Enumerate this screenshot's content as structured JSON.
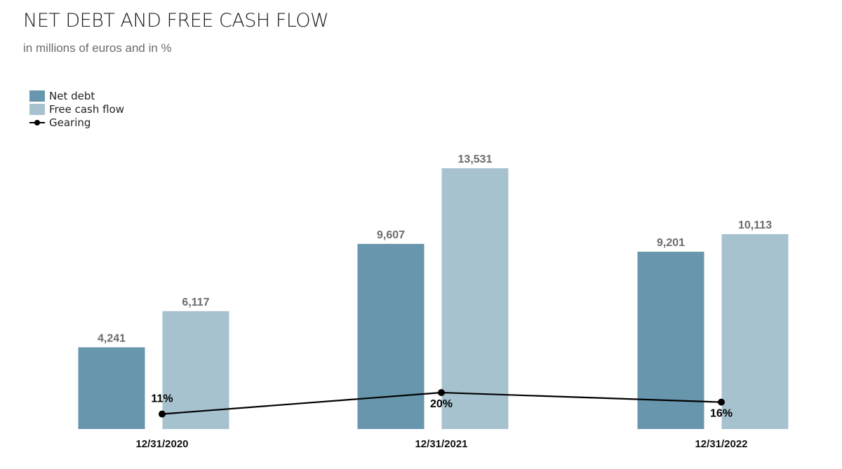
{
  "header": {
    "title": "NET DEBT AND FREE CASH FLOW",
    "subtitle": "in millions of euros and in %"
  },
  "legend": {
    "items": [
      {
        "label": "Net debt",
        "kind": "bar",
        "color": "#6896ad"
      },
      {
        "label": "Free cash flow",
        "kind": "bar",
        "color": "#a7c2cf"
      },
      {
        "label": "Gearing",
        "kind": "line",
        "color": "#000000"
      }
    ]
  },
  "chart_data": {
    "type": "bar",
    "categories": [
      "12/31/2020",
      "12/31/2021",
      "12/31/2022"
    ],
    "series": [
      {
        "name": "Net debt",
        "values": [
          4241,
          9607,
          9201
        ],
        "labels": [
          "4,241",
          "9,607",
          "9,201"
        ],
        "color": "#6896ad"
      },
      {
        "name": "Free cash flow",
        "values": [
          6117,
          13531,
          10113
        ],
        "labels": [
          "6,117",
          "13,531",
          "10,113"
        ],
        "color": "#a7c2cf"
      }
    ],
    "line_series": {
      "name": "Gearing",
      "values": [
        11,
        20,
        16
      ],
      "labels": [
        "11%",
        "20%",
        "16%"
      ],
      "unit": "%",
      "color": "#000000"
    },
    "ylim": [
      0,
      16000
    ],
    "line_ylim": [
      0,
      100
    ],
    "grid": false,
    "legend_position": "top-left",
    "value_label_color": "#6b6b6b"
  }
}
